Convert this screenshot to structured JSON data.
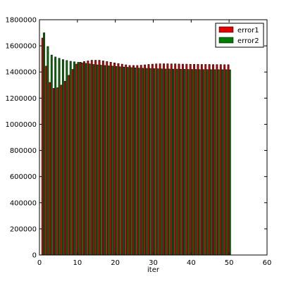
{
  "chart_data": {
    "type": "bar",
    "title": "",
    "xlabel": "iter",
    "ylabel": "",
    "xlim": [
      0,
      60
    ],
    "ylim": [
      0,
      1800000
    ],
    "x_ticks": [
      "0",
      "10",
      "20",
      "30",
      "40",
      "50",
      "60"
    ],
    "y_ticks": [
      "0",
      "200000",
      "400000",
      "600000",
      "800000",
      "1000000",
      "1200000",
      "1400000",
      "1600000",
      "1800000"
    ],
    "legend_position": "top-right",
    "grid": false,
    "x": [
      1,
      2,
      3,
      4,
      5,
      6,
      7,
      8,
      9,
      10,
      11,
      12,
      13,
      14,
      15,
      16,
      17,
      18,
      19,
      20,
      21,
      22,
      23,
      24,
      25,
      26,
      27,
      28,
      29,
      30,
      31,
      32,
      33,
      34,
      35,
      36,
      37,
      38,
      39,
      40,
      41,
      42,
      43,
      44,
      45,
      46,
      47,
      48,
      49,
      50
    ],
    "series": [
      {
        "name": "error1",
        "color": "#e00000",
        "values": [
          1660000,
          1445000,
          1320000,
          1275000,
          1280000,
          1300000,
          1330000,
          1375000,
          1420000,
          1460000,
          1475000,
          1480000,
          1485000,
          1490000,
          1490000,
          1490000,
          1485000,
          1480000,
          1475000,
          1470000,
          1465000,
          1460000,
          1455000,
          1450000,
          1450000,
          1450000,
          1452000,
          1455000,
          1458000,
          1460000,
          1462000,
          1463000,
          1463000,
          1463000,
          1462000,
          1462000,
          1461000,
          1460000,
          1460000,
          1459000,
          1459000,
          1459000,
          1458000,
          1458000,
          1458000,
          1457000,
          1457000,
          1457000,
          1456000,
          1456000
        ]
      },
      {
        "name": "error2",
        "color": "#007a00",
        "values": [
          1700000,
          1595000,
          1530000,
          1515000,
          1505000,
          1495000,
          1488000,
          1482000,
          1478000,
          1474000,
          1470000,
          1466000,
          1462000,
          1458000,
          1455000,
          1452000,
          1450000,
          1447000,
          1445000,
          1443000,
          1440000,
          1438000,
          1436000,
          1434000,
          1432000,
          1430000,
          1429000,
          1428000,
          1427000,
          1426000,
          1425000,
          1424000,
          1423000,
          1423000,
          1422000,
          1422000,
          1421000,
          1421000,
          1420000,
          1420000,
          1420000,
          1419000,
          1419000,
          1419000,
          1418000,
          1418000,
          1418000,
          1418000,
          1418000,
          1417000
        ]
      }
    ]
  }
}
